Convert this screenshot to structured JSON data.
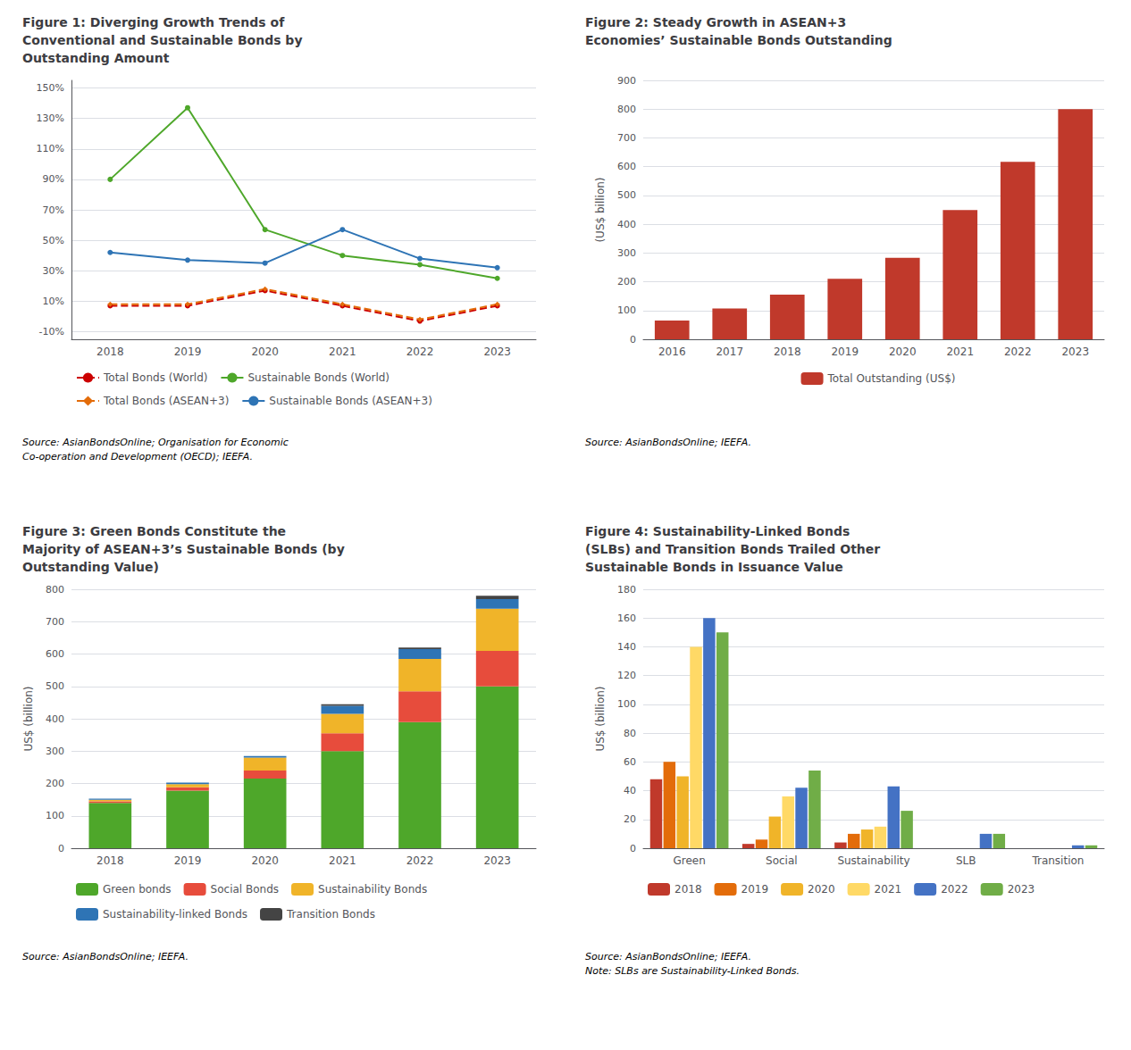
{
  "chart_data": [
    {
      "type": "line",
      "title": "Figure 1: Diverging Growth Trends of\nConventional and Sustainable Bonds by\nOutstanding Amount",
      "annotations": [
        "Source: AsianBondsOnline; Organisation for Economic\nCo-operation and Development (OECD); IEEFA."
      ],
      "categories": [
        "2018",
        "2019",
        "2020",
        "2021",
        "2022",
        "2023"
      ],
      "series": [
        {
          "name": "Total Bonds (World)",
          "color": "#cc0000",
          "marker": "circle",
          "line_style": "dashed",
          "values": [
            7,
            7,
            17,
            7,
            -3,
            7
          ]
        },
        {
          "name": "Sustainable Bonds (World)",
          "color": "#4ea72a",
          "marker": "circle",
          "line_style": "solid",
          "values": [
            90,
            137,
            57,
            40,
            34,
            25
          ]
        },
        {
          "name": "Total Bonds (ASEAN+3)",
          "color": "#e36c0a",
          "marker": "diamond",
          "line_style": "dashed",
          "values": [
            8,
            8,
            18,
            8,
            -2,
            8
          ]
        },
        {
          "name": "Sustainable Bonds (ASEAN+3)",
          "color": "#2e74b5",
          "marker": "circle",
          "line_style": "solid",
          "values": [
            42,
            37,
            35,
            57,
            38,
            32
          ]
        }
      ],
      "ylim": [
        -15,
        155
      ],
      "yticks": [
        {
          "value": -10,
          "label": "-10%"
        },
        {
          "value": 10,
          "label": "10%"
        },
        {
          "value": 30,
          "label": "30%"
        },
        {
          "value": 50,
          "label": "50%"
        },
        {
          "value": 70,
          "label": "70%"
        },
        {
          "value": 90,
          "label": "90%"
        },
        {
          "value": 110,
          "label": "110%"
        },
        {
          "value": 130,
          "label": "130%"
        },
        {
          "value": 150,
          "label": "150%"
        }
      ],
      "grid": true,
      "legend": "bottom left"
    },
    {
      "type": "bar",
      "title": "Figure 2: Steady Growth in ASEAN+3\nEconomies’ Sustainable Bonds Outstanding",
      "annotations": [
        "Source: AsianBondsOnline; IEEFA."
      ],
      "categories": [
        "2016",
        "2017",
        "2018",
        "2019",
        "2020",
        "2021",
        "2022",
        "2023"
      ],
      "series": [
        {
          "name": "Total Outstanding (US$)",
          "color": "#c0392b",
          "values": [
            65,
            107,
            155,
            210,
            283,
            449,
            617,
            800
          ]
        }
      ],
      "ylabel": "(US$ billion)",
      "ylim": [
        0,
        900
      ],
      "yticks": [
        0,
        100,
        200,
        300,
        400,
        500,
        600,
        700,
        800,
        900
      ],
      "grid": true,
      "legend": "bottom"
    },
    {
      "type": "bar",
      "title": "Figure 3: Green Bonds Constitute the\nMajority of ASEAN+3’s Sustainable Bonds (by\nOutstanding Value)",
      "annotations": [
        "Source: AsianBondsOnline; IEEFA."
      ],
      "categories": [
        "2018",
        "2019",
        "2020",
        "2021",
        "2022",
        "2023"
      ],
      "series": [
        {
          "name": "Green bonds",
          "color": "#4ea72a",
          "values": [
            140,
            178,
            215,
            300,
            390,
            500
          ]
        },
        {
          "name": "Social Bonds",
          "color": "#e74c3c",
          "values": [
            5,
            10,
            25,
            55,
            95,
            110
          ]
        },
        {
          "name": "Sustainability Bonds",
          "color": "#f0b429",
          "values": [
            5,
            10,
            40,
            60,
            100,
            130
          ]
        },
        {
          "name": "Sustainability-linked Bonds",
          "color": "#2e74b5",
          "values": [
            3,
            5,
            5,
            25,
            30,
            30
          ]
        },
        {
          "name": "Transition Bonds",
          "color": "#444444",
          "values": [
            0,
            0,
            0,
            5,
            5,
            10
          ]
        }
      ],
      "stacked": true,
      "ylabel": "US$ (billion)",
      "ylim": [
        0,
        800
      ],
      "yticks": [
        0,
        100,
        200,
        300,
        400,
        500,
        600,
        700,
        800
      ],
      "grid": true,
      "legend": "bottom left"
    },
    {
      "type": "bar",
      "title": "Figure 4: Sustainability-Linked Bonds\n(SLBs) and Transition Bonds Trailed Other\nSustainable Bonds in Issuance Value",
      "annotations": [
        "Source: AsianBondsOnline; IEEFA.\nNote: SLBs are Sustainability-Linked Bonds."
      ],
      "categories": [
        "Green",
        "Social",
        "Sustainability",
        "SLB",
        "Transition"
      ],
      "series": [
        {
          "name": "2018",
          "color": "#c0392b",
          "values": [
            48,
            3,
            4,
            0,
            0
          ]
        },
        {
          "name": "2019",
          "color": "#e36c0a",
          "values": [
            60,
            6,
            10,
            0,
            0
          ]
        },
        {
          "name": "2020",
          "color": "#f0b429",
          "values": [
            50,
            22,
            13,
            0,
            0
          ]
        },
        {
          "name": "2021",
          "color": "#ffd966",
          "values": [
            140,
            36,
            15,
            0,
            0
          ]
        },
        {
          "name": "2022",
          "color": "#4472c4",
          "values": [
            160,
            42,
            43,
            10,
            2
          ]
        },
        {
          "name": "2023",
          "color": "#70ad47",
          "values": [
            150,
            54,
            26,
            10,
            2
          ]
        }
      ],
      "ylabel": "US$ (billion)",
      "ylim": [
        0,
        180
      ],
      "yticks": [
        0,
        20,
        40,
        60,
        80,
        100,
        120,
        140,
        160,
        180
      ],
      "grid": true,
      "legend": "bottom left"
    }
  ]
}
